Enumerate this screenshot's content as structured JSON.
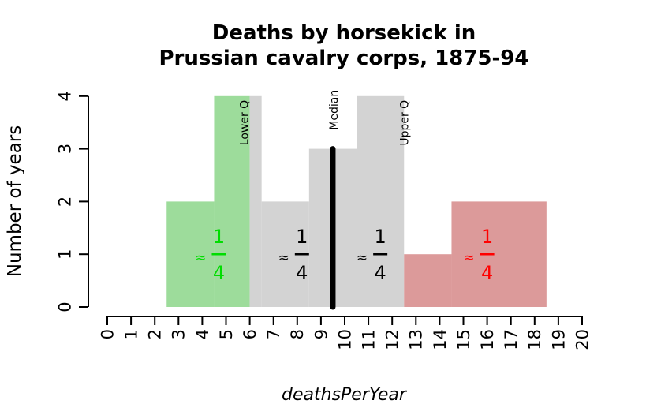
{
  "chart_data": {
    "type": "bar",
    "title_line1": "Deaths by horsekick in",
    "title_line2": "Prussian cavalry corps, 1875-94",
    "xlabel": "deathsPerYear",
    "ylabel": "Number of years",
    "xlim": [
      0,
      20
    ],
    "ylim": [
      0,
      4
    ],
    "x_ticks": [
      "0",
      "1",
      "2",
      "3",
      "4",
      "5",
      "6",
      "7",
      "8",
      "9",
      "10",
      "11",
      "12",
      "13",
      "14",
      "15",
      "16",
      "17",
      "18",
      "19",
      "20"
    ],
    "y_ticks": [
      "0",
      "1",
      "2",
      "3",
      "4"
    ],
    "bins": [
      {
        "from": 2.5,
        "to": 4.5,
        "count": 2,
        "group": "lower"
      },
      {
        "from": 4.5,
        "to": 6.0,
        "count": 4,
        "group": "lower"
      },
      {
        "from": 6.0,
        "to": 6.5,
        "count": 4,
        "group": "middle"
      },
      {
        "from": 6.5,
        "to": 8.5,
        "count": 2,
        "group": "middle"
      },
      {
        "from": 8.5,
        "to": 10.5,
        "count": 3,
        "group": "middle"
      },
      {
        "from": 10.5,
        "to": 12.5,
        "count": 4,
        "group": "middle"
      },
      {
        "from": 12.5,
        "to": 14.5,
        "count": 1,
        "group": "upper"
      },
      {
        "from": 14.5,
        "to": 18.5,
        "count": 2,
        "group": "upper"
      }
    ],
    "median": 9.5,
    "lower_quartile": 6.0,
    "upper_quartile": 12.5,
    "quartile_labels": {
      "lower": "Lower Q",
      "median": "Median",
      "upper": "Upper Q"
    },
    "fraction_annotations": [
      {
        "x": 4.7,
        "approx": "≈",
        "numerator": "1",
        "denominator": "4",
        "color": "#00dd00"
      },
      {
        "x": 8.2,
        "approx": "≈",
        "numerator": "1",
        "denominator": "4",
        "color": "#000000"
      },
      {
        "x": 11.5,
        "approx": "≈",
        "numerator": "1",
        "denominator": "4",
        "color": "#000000"
      },
      {
        "x": 16.0,
        "approx": "≈",
        "numerator": "1",
        "denominator": "4",
        "color": "#ff0000"
      }
    ],
    "colors": {
      "lower": "#9ddc9b",
      "middle": "#d3d3d3",
      "upper": "#dc9a9a",
      "median_line": "#000000"
    },
    "grid": false,
    "legend": "none"
  }
}
